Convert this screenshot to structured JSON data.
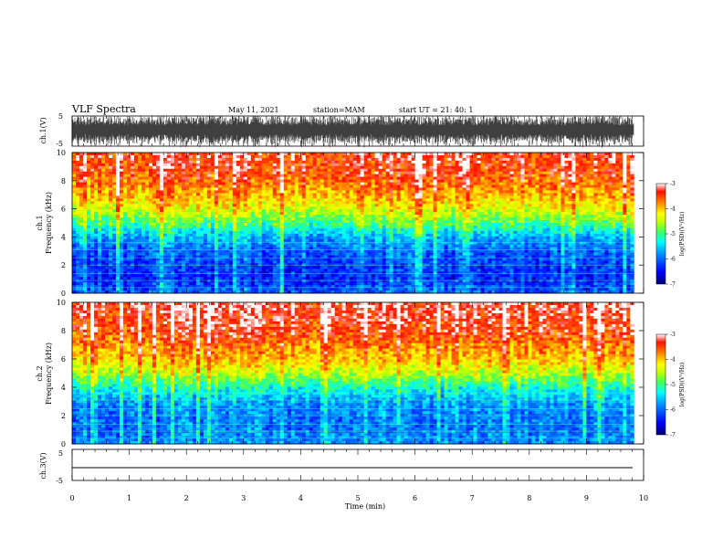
{
  "header": {
    "title": "VLF Spectra",
    "date": "May 11, 2021",
    "station": "station=MAM",
    "start": "start  UT  =  21: 40: 1"
  },
  "colors": {
    "waveform": "#000000",
    "colormap": [
      "#000080",
      "#0000ff",
      "#00a0ff",
      "#00ffff",
      "#40ff80",
      "#c0ff00",
      "#ffff00",
      "#ffa000",
      "#ff3000",
      "#ff0000",
      "#ffffff"
    ]
  },
  "chart_data": [
    {
      "type": "line",
      "ylabel": "ch.1(V)",
      "ylim": [
        -5,
        5
      ],
      "yticks": [
        "5",
        "-5"
      ],
      "xlim": [
        0,
        10
      ],
      "description_values": {
        "amplitude_range": [
          -5,
          5
        ]
      }
    },
    {
      "type": "heatmap",
      "ylabel_line1": "ch.1",
      "ylabel_line2": "Frequency (kHz)",
      "ylim": [
        0,
        10
      ],
      "yticks": [
        "0",
        "2",
        "4",
        "6",
        "8",
        "10"
      ],
      "xlim": [
        0,
        10
      ],
      "colorbar": {
        "label": "log(PSD)(V²/Hz)",
        "range": [
          -7,
          -3
        ],
        "ticks": [
          "-3",
          "-4",
          "-5",
          "-6",
          "-7"
        ]
      },
      "profile_log_psd": [
        {
          "freq_khz": 0,
          "value": -6.0
        },
        {
          "freq_khz": 1,
          "value": -6.3
        },
        {
          "freq_khz": 2,
          "value": -6.2
        },
        {
          "freq_khz": 3,
          "value": -6.0
        },
        {
          "freq_khz": 4,
          "value": -5.6
        },
        {
          "freq_khz": 5,
          "value": -4.9
        },
        {
          "freq_khz": 6,
          "value": -4.3
        },
        {
          "freq_khz": 7,
          "value": -3.9
        },
        {
          "freq_khz": 8,
          "value": -3.6
        },
        {
          "freq_khz": 9,
          "value": -3.4
        },
        {
          "freq_khz": 10,
          "value": -3.3
        }
      ]
    },
    {
      "type": "heatmap",
      "ylabel_line1": "ch.2",
      "ylabel_line2": "Frequency (kHz)",
      "ylim": [
        0,
        10
      ],
      "yticks": [
        "0",
        "2",
        "4",
        "6",
        "8",
        "10"
      ],
      "xlim": [
        0,
        10
      ],
      "colorbar": {
        "label": "log(PSD)(V²/Hz)",
        "range": [
          -7,
          -3
        ],
        "ticks": [
          "-3",
          "-4",
          "-5",
          "-6",
          "-7"
        ]
      },
      "profile_log_psd": [
        {
          "freq_khz": 0,
          "value": -5.8
        },
        {
          "freq_khz": 1,
          "value": -5.9
        },
        {
          "freq_khz": 2,
          "value": -5.9
        },
        {
          "freq_khz": 3,
          "value": -5.7
        },
        {
          "freq_khz": 4,
          "value": -5.2
        },
        {
          "freq_khz": 5,
          "value": -4.5
        },
        {
          "freq_khz": 6,
          "value": -4.0
        },
        {
          "freq_khz": 7,
          "value": -3.7
        },
        {
          "freq_khz": 8,
          "value": -3.4
        },
        {
          "freq_khz": 9,
          "value": -3.3
        },
        {
          "freq_khz": 10,
          "value": -3.2
        }
      ]
    },
    {
      "type": "line",
      "ylabel": "ch.3(V)",
      "ylim": [
        -5,
        5
      ],
      "yticks": [
        "5",
        "-5"
      ],
      "xlim": [
        0,
        10
      ],
      "values_flat": 0
    }
  ],
  "xaxis": {
    "label": "Time  (min)",
    "ticks": [
      "0",
      "1",
      "2",
      "3",
      "4",
      "5",
      "6",
      "7",
      "8",
      "9",
      "10"
    ],
    "range": [
      0,
      10
    ],
    "data_end_min": 9.83
  }
}
